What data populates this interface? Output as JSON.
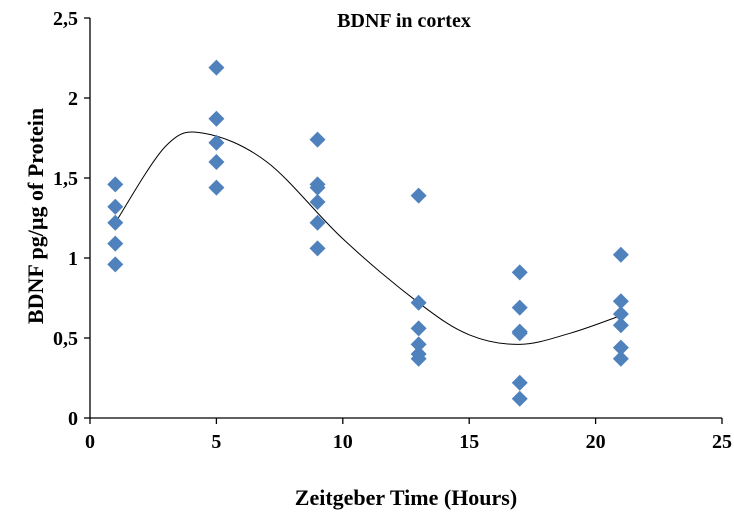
{
  "chart_data": {
    "type": "scatter",
    "title": "BDNF in cortex",
    "xlabel": "Zeitgeber Time (Hours)",
    "ylabel": "BDNF pg/µg of Protein",
    "xlim": [
      0,
      25
    ],
    "ylim": [
      0,
      2.5
    ],
    "x_ticks": [
      "0",
      "5",
      "10",
      "15",
      "20",
      "25"
    ],
    "y_ticks": [
      "0",
      "0,5",
      "1",
      "1,5",
      "2",
      "2,5"
    ],
    "grid": false,
    "legend": "none",
    "marker_color": "#4F81BD",
    "trendline_color": "#000000",
    "series": [
      {
        "x": [
          1,
          1,
          1,
          1,
          1,
          5,
          5,
          5,
          5,
          5,
          9,
          9,
          9,
          9,
          9,
          9,
          13,
          13,
          13,
          13,
          13,
          13,
          17,
          17,
          17,
          17,
          17,
          17,
          21,
          21,
          21,
          21,
          21,
          21
        ],
        "y": [
          1.46,
          1.32,
          1.22,
          1.09,
          0.96,
          2.19,
          1.87,
          1.72,
          1.6,
          1.44,
          1.74,
          1.46,
          1.44,
          1.35,
          1.22,
          1.06,
          1.39,
          0.72,
          0.56,
          0.46,
          0.4,
          0.37,
          0.91,
          0.69,
          0.54,
          0.53,
          0.22,
          0.12,
          1.02,
          0.73,
          0.65,
          0.58,
          0.44,
          0.37
        ]
      }
    ],
    "trendline": {
      "type": "polynomial",
      "x_range": [
        1,
        21
      ],
      "points": [
        [
          1,
          1.22
        ],
        [
          3,
          1.7
        ],
        [
          4.5,
          1.78
        ],
        [
          7,
          1.6
        ],
        [
          10,
          1.12
        ],
        [
          13,
          0.72
        ],
        [
          15,
          0.52
        ],
        [
          17,
          0.46
        ],
        [
          19,
          0.53
        ],
        [
          21,
          0.64
        ]
      ]
    }
  }
}
